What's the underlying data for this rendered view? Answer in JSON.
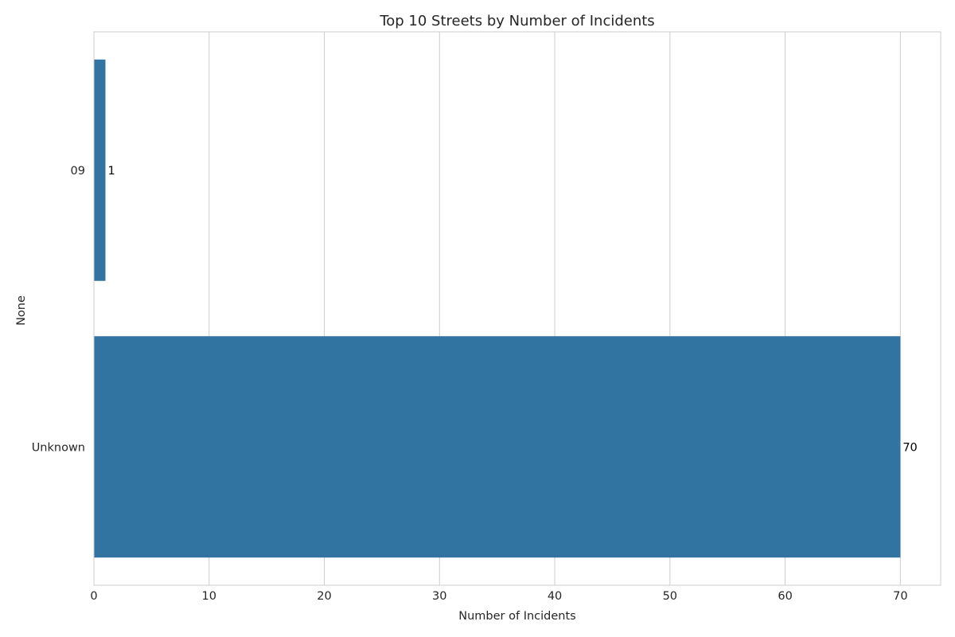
{
  "chart_data": {
    "type": "bar",
    "orientation": "horizontal",
    "title": "Top 10 Streets by Number of Incidents",
    "xlabel": "Number of Incidents",
    "ylabel": "None",
    "categories": [
      "09",
      "Unknown"
    ],
    "values": [
      1,
      70
    ],
    "data_labels": [
      "1",
      "70"
    ],
    "xlim": [
      0,
      73.5
    ],
    "xticks": [
      0,
      10,
      20,
      30,
      40,
      50,
      60,
      70
    ],
    "xtick_labels": [
      "0",
      "10",
      "20",
      "30",
      "40",
      "50",
      "60",
      "70"
    ],
    "grid": "vertical",
    "legend": "none",
    "colors": {
      "bar": "#3274a1",
      "grid": "#cccccc",
      "text": "#262626",
      "data_label": "#000000"
    }
  }
}
